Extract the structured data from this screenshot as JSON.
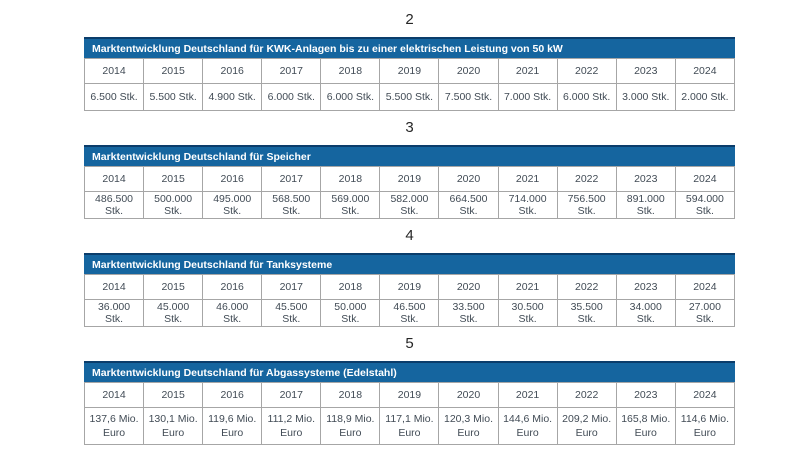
{
  "colors": {
    "header_bar": "#15659f",
    "header_bar_top": "#0b3d6b",
    "header_text": "#ffffff",
    "cell_text": "#414b55",
    "border": "#a6a6a6",
    "number_text": "#262626"
  },
  "tables": [
    {
      "number": "2",
      "title": "Marktentwicklung Deutschland für KWK-Anlagen bis zu einer elektrischen Leistung von 50 kW",
      "years": [
        "2014",
        "2015",
        "2016",
        "2017",
        "2018",
        "2019",
        "2020",
        "2021",
        "2022",
        "2023",
        "2024"
      ],
      "values": [
        "6.500 Stk.",
        "5.500 Stk.",
        "4.900 Stk.",
        "6.000 Stk.",
        "6.000 Stk.",
        "5.500 Stk.",
        "7.500 Stk.",
        "7.000 Stk.",
        "6.000 Stk.",
        "3.000 Stk.",
        "2.000 Stk."
      ]
    },
    {
      "number": "3",
      "title": "Marktentwicklung Deutschland für Speicher",
      "years": [
        "2014",
        "2015",
        "2016",
        "2017",
        "2018",
        "2019",
        "2020",
        "2021",
        "2022",
        "2023",
        "2024"
      ],
      "values": [
        "486.500 Stk.",
        "500.000 Stk.",
        "495.000 Stk.",
        "568.500 Stk.",
        "569.000 Stk.",
        "582.000 Stk.",
        "664.500 Stk.",
        "714.000 Stk.",
        "756.500 Stk.",
        "891.000 Stk.",
        "594.000 Stk."
      ]
    },
    {
      "number": "4",
      "title": "Marktentwicklung Deutschland für Tanksysteme",
      "years": [
        "2014",
        "2015",
        "2016",
        "2017",
        "2018",
        "2019",
        "2020",
        "2021",
        "2022",
        "2023",
        "2024"
      ],
      "values": [
        "36.000 Stk.",
        "45.000 Stk.",
        "46.000 Stk.",
        "45.500 Stk.",
        "50.000 Stk.",
        "46.500 Stk.",
        "33.500 Stk.",
        "30.500 Stk.",
        "35.500 Stk.",
        "34.000 Stk.",
        "27.000 Stk."
      ]
    },
    {
      "number": "5",
      "title": "Marktentwicklung Deutschland für Abgassysteme (Edelstahl)",
      "years": [
        "2014",
        "2015",
        "2016",
        "2017",
        "2018",
        "2019",
        "2020",
        "2021",
        "2022",
        "2023",
        "2024"
      ],
      "values": [
        "137,6 Mio. Euro",
        "130,1 Mio. Euro",
        "119,6 Mio. Euro",
        "111,2 Mio. Euro",
        "118,9 Mio. Euro",
        "117,1 Mio. Euro",
        "120,3 Mio. Euro",
        "144,6 Mio. Euro",
        "209,2 Mio. Euro",
        "165,8 Mio. Euro",
        "114,6 Mio. Euro"
      ]
    }
  ]
}
